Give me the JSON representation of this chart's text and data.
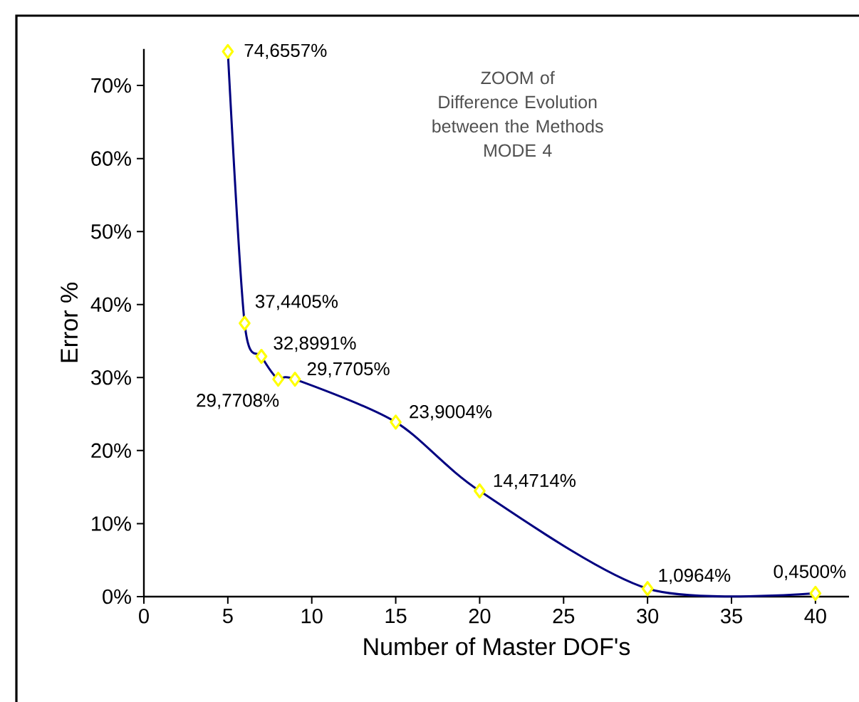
{
  "chart_data": {
    "type": "line",
    "title": "ZOOM of",
    "subtitle": "Difference Evolution between the Methods",
    "annotations": [
      "MODE 4"
    ],
    "xlabel": "Number of Master DOF's",
    "ylabel": "Error %",
    "x": [
      5,
      6,
      7,
      8,
      9,
      15,
      20,
      30,
      40
    ],
    "series": [
      {
        "color": "#000080",
        "values": [
          74.6557,
          37.4405,
          32.8991,
          29.7708,
          29.7705,
          23.9004,
          14.4714,
          1.0964,
          0.45
        ],
        "value_labels": [
          "74,6557%",
          "37,4405%",
          "32,8991%",
          "29,7708%",
          "29,7705%",
          "23,9004%",
          "14,4714%",
          "1,0964%",
          "0,4500%"
        ]
      }
    ],
    "marker": "diamond",
    "line_style": "solid",
    "xlim": [
      0,
      42
    ],
    "xticks": [
      0,
      5,
      10,
      15,
      20,
      25,
      30,
      35,
      40
    ],
    "ylim": [
      0,
      75
    ],
    "yticks": [
      {
        "value": 0,
        "label": "0%"
      },
      {
        "value": 10,
        "label": "10%"
      },
      {
        "value": 20,
        "label": "20%"
      },
      {
        "value": 30,
        "label": "30%"
      },
      {
        "value": 40,
        "label": "40%"
      },
      {
        "value": 50,
        "label": "50%"
      },
      {
        "value": 60,
        "label": "60%"
      },
      {
        "value": 70,
        "label": "70%"
      }
    ]
  }
}
